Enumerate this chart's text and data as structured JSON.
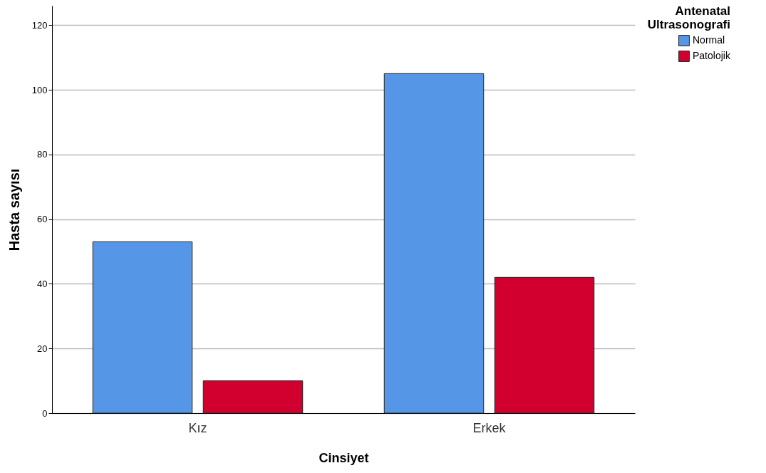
{
  "chart_data": {
    "type": "bar",
    "xlabel": "Cinsiyet",
    "ylabel": "Hasta sayısı",
    "legend_title": "Antenatal Ultrasonografi",
    "categories": [
      "Kız",
      "Erkek"
    ],
    "series": [
      {
        "name": "Normal",
        "color": "#5596e6",
        "values": [
          53,
          105
        ]
      },
      {
        "name": "Patolojik",
        "color": "#d2002e",
        "values": [
          10,
          42
        ]
      }
    ],
    "ylim": [
      0,
      126
    ],
    "yticks": [
      0,
      20,
      40,
      60,
      80,
      100,
      120
    ],
    "grid": "y",
    "legend": "top right"
  }
}
